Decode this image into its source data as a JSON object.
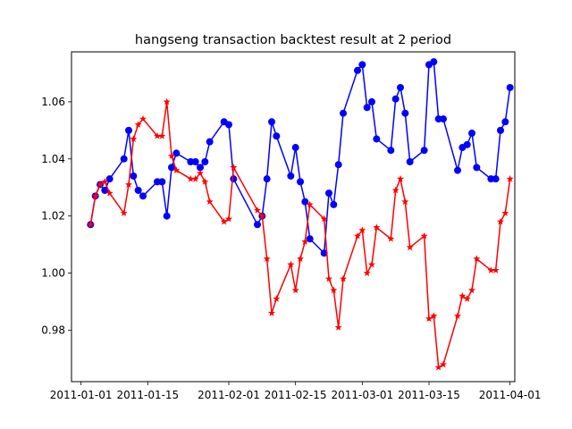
{
  "chart_data": {
    "type": "line",
    "title": "hangseng transaction backtest result at 2 period",
    "xlabel": "",
    "ylabel": "",
    "x_axis": {
      "kind": "date",
      "range": [
        "2010-12-30",
        "2011-04-02"
      ],
      "ticks": [
        "2011-01-01",
        "2011-01-15",
        "2011-02-01",
        "2011-02-15",
        "2011-03-01",
        "2011-03-15",
        "2011-04-01"
      ]
    },
    "y_axis": {
      "range": [
        0.962,
        1.0775
      ],
      "ticks": [
        "0.98",
        "1.00",
        "1.02",
        "1.04",
        "1.06"
      ]
    },
    "grid": false,
    "legend": "none",
    "series": [
      {
        "color": "#0000ff",
        "marker": "circle",
        "points": [
          [
            "2011-01-03",
            1.017
          ],
          [
            "2011-01-04",
            1.027
          ],
          [
            "2011-01-05",
            1.031
          ],
          [
            "2011-01-06",
            1.029
          ],
          [
            "2011-01-07",
            1.033
          ],
          [
            "2011-01-10",
            1.04
          ],
          [
            "2011-01-11",
            1.05
          ],
          [
            "2011-01-12",
            1.034
          ],
          [
            "2011-01-13",
            1.029
          ],
          [
            "2011-01-14",
            1.027
          ],
          [
            "2011-01-17",
            1.032
          ],
          [
            "2011-01-18",
            1.032
          ],
          [
            "2011-01-19",
            1.02
          ],
          [
            "2011-01-20",
            1.037
          ],
          [
            "2011-01-21",
            1.042
          ],
          [
            "2011-01-24",
            1.039
          ],
          [
            "2011-01-25",
            1.039
          ],
          [
            "2011-01-26",
            1.037
          ],
          [
            "2011-01-27",
            1.039
          ],
          [
            "2011-01-28",
            1.046
          ],
          [
            "2011-01-31",
            1.053
          ],
          [
            "2011-02-01",
            1.052
          ],
          [
            "2011-02-02",
            1.033
          ],
          [
            "2011-02-07",
            1.017
          ],
          [
            "2011-02-08",
            1.02
          ],
          [
            "2011-02-09",
            1.033
          ],
          [
            "2011-02-10",
            1.053
          ],
          [
            "2011-02-11",
            1.048
          ],
          [
            "2011-02-14",
            1.034
          ],
          [
            "2011-02-15",
            1.044
          ],
          [
            "2011-02-16",
            1.032
          ],
          [
            "2011-02-17",
            1.025
          ],
          [
            "2011-02-18",
            1.012
          ],
          [
            "2011-02-21",
            1.007
          ],
          [
            "2011-02-22",
            1.028
          ],
          [
            "2011-02-23",
            1.024
          ],
          [
            "2011-02-24",
            1.038
          ],
          [
            "2011-02-25",
            1.056
          ],
          [
            "2011-02-28",
            1.071
          ],
          [
            "2011-03-01",
            1.073
          ],
          [
            "2011-03-02",
            1.058
          ],
          [
            "2011-03-03",
            1.06
          ],
          [
            "2011-03-04",
            1.047
          ],
          [
            "2011-03-07",
            1.043
          ],
          [
            "2011-03-08",
            1.061
          ],
          [
            "2011-03-09",
            1.065
          ],
          [
            "2011-03-10",
            1.056
          ],
          [
            "2011-03-11",
            1.039
          ],
          [
            "2011-03-14",
            1.043
          ],
          [
            "2011-03-15",
            1.073
          ],
          [
            "2011-03-16",
            1.074
          ],
          [
            "2011-03-17",
            1.054
          ],
          [
            "2011-03-18",
            1.054
          ],
          [
            "2011-03-21",
            1.036
          ],
          [
            "2011-03-22",
            1.044
          ],
          [
            "2011-03-23",
            1.045
          ],
          [
            "2011-03-24",
            1.049
          ],
          [
            "2011-03-25",
            1.037
          ],
          [
            "2011-03-28",
            1.033
          ],
          [
            "2011-03-29",
            1.033
          ],
          [
            "2011-03-30",
            1.05
          ],
          [
            "2011-03-31",
            1.053
          ],
          [
            "2011-04-01",
            1.065
          ]
        ]
      },
      {
        "color": "#ff0000",
        "marker": "star",
        "points": [
          [
            "2011-01-03",
            1.017
          ],
          [
            "2011-01-04",
            1.027
          ],
          [
            "2011-01-05",
            1.031
          ],
          [
            "2011-01-06",
            1.032
          ],
          [
            "2011-01-07",
            1.028
          ],
          [
            "2011-01-10",
            1.021
          ],
          [
            "2011-01-11",
            1.031
          ],
          [
            "2011-01-12",
            1.047
          ],
          [
            "2011-01-13",
            1.052
          ],
          [
            "2011-01-14",
            1.054
          ],
          [
            "2011-01-17",
            1.048
          ],
          [
            "2011-01-18",
            1.048
          ],
          [
            "2011-01-19",
            1.06
          ],
          [
            "2011-01-20",
            1.041
          ],
          [
            "2011-01-21",
            1.036
          ],
          [
            "2011-01-24",
            1.033
          ],
          [
            "2011-01-25",
            1.033
          ],
          [
            "2011-01-26",
            1.035
          ],
          [
            "2011-01-27",
            1.032
          ],
          [
            "2011-01-28",
            1.025
          ],
          [
            "2011-01-31",
            1.018
          ],
          [
            "2011-02-01",
            1.019
          ],
          [
            "2011-02-02",
            1.037
          ],
          [
            "2011-02-07",
            1.022
          ],
          [
            "2011-02-08",
            1.02
          ],
          [
            "2011-02-09",
            1.005
          ],
          [
            "2011-02-10",
            0.986
          ],
          [
            "2011-02-11",
            0.991
          ],
          [
            "2011-02-14",
            1.003
          ],
          [
            "2011-02-15",
            0.994
          ],
          [
            "2011-02-16",
            1.005
          ],
          [
            "2011-02-17",
            1.011
          ],
          [
            "2011-02-18",
            1.024
          ],
          [
            "2011-02-21",
            1.019
          ],
          [
            "2011-02-22",
            0.998
          ],
          [
            "2011-02-23",
            0.994
          ],
          [
            "2011-02-24",
            0.981
          ],
          [
            "2011-02-25",
            0.998
          ],
          [
            "2011-02-28",
            1.013
          ],
          [
            "2011-03-01",
            1.015
          ],
          [
            "2011-03-02",
            1.0
          ],
          [
            "2011-03-03",
            1.003
          ],
          [
            "2011-03-04",
            1.016
          ],
          [
            "2011-03-07",
            1.012
          ],
          [
            "2011-03-08",
            1.029
          ],
          [
            "2011-03-09",
            1.033
          ],
          [
            "2011-03-10",
            1.025
          ],
          [
            "2011-03-11",
            1.009
          ],
          [
            "2011-03-14",
            1.013
          ],
          [
            "2011-03-15",
            0.984
          ],
          [
            "2011-03-16",
            0.985
          ],
          [
            "2011-03-17",
            0.967
          ],
          [
            "2011-03-18",
            0.968
          ],
          [
            "2011-03-21",
            0.985
          ],
          [
            "2011-03-22",
            0.992
          ],
          [
            "2011-03-23",
            0.991
          ],
          [
            "2011-03-24",
            0.994
          ],
          [
            "2011-03-25",
            1.005
          ],
          [
            "2011-03-28",
            1.001
          ],
          [
            "2011-03-29",
            1.001
          ],
          [
            "2011-03-30",
            1.018
          ],
          [
            "2011-03-31",
            1.021
          ],
          [
            "2011-04-01",
            1.033
          ]
        ]
      }
    ]
  }
}
